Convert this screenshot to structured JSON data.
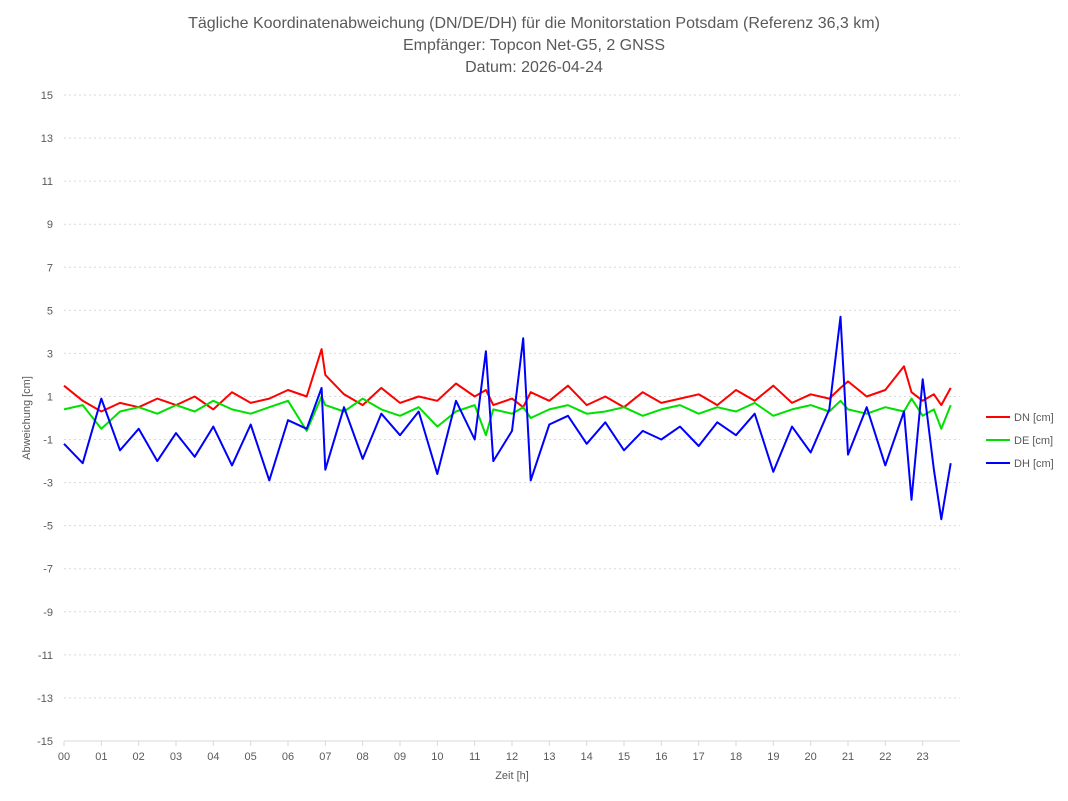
{
  "chart_data": {
    "type": "line",
    "title": [
      "Tägliche Koordinatenabweichung (DN/DE/DH) für die Monitorstation Potsdam (Referenz 36,3 km)",
      "Empfänger: Topcon Net-G5, 2 GNSS",
      "Datum: 2026-04-24"
    ],
    "xlabel": "Zeit [h]",
    "ylabel": "Abweichung [cm]",
    "xlim": [
      0,
      24
    ],
    "ylim": [
      -15,
      15
    ],
    "x_ticks": [
      "00",
      "01",
      "02",
      "03",
      "04",
      "05",
      "06",
      "07",
      "08",
      "09",
      "10",
      "11",
      "12",
      "13",
      "14",
      "15",
      "16",
      "17",
      "18",
      "19",
      "20",
      "21",
      "22",
      "23"
    ],
    "y_ticks": [
      "15",
      "13",
      "11",
      "9",
      "7",
      "5",
      "3",
      "1",
      "-1",
      "-3",
      "-5",
      "-7",
      "-9",
      "-11",
      "-13",
      "-15"
    ],
    "grid": "horizontal dotted",
    "legend": "right",
    "x": [
      0,
      0.5,
      1,
      1.5,
      2,
      2.5,
      3,
      3.5,
      4,
      4.5,
      5,
      5.5,
      6,
      6.5,
      6.9,
      7,
      7.5,
      8,
      8.5,
      9,
      9.5,
      10,
      10.5,
      11,
      11.3,
      11.5,
      12,
      12.3,
      12.5,
      13,
      13.5,
      14,
      14.5,
      15,
      15.5,
      16,
      16.5,
      17,
      17.5,
      18,
      18.5,
      19,
      19.5,
      20,
      20.5,
      20.8,
      21,
      21.5,
      22,
      22.5,
      22.7,
      23,
      23.3,
      23.5,
      23.75
    ],
    "series": [
      {
        "name": "DN [cm]",
        "color": "#ff0000",
        "values": [
          1.5,
          0.8,
          0.3,
          0.7,
          0.5,
          0.9,
          0.6,
          1.0,
          0.4,
          1.2,
          0.7,
          0.9,
          1.3,
          1.0,
          3.2,
          2.0,
          1.1,
          0.6,
          1.4,
          0.7,
          1.0,
          0.8,
          1.6,
          1.0,
          1.3,
          0.6,
          0.9,
          0.5,
          1.2,
          0.8,
          1.5,
          0.6,
          1.0,
          0.5,
          1.2,
          0.7,
          0.9,
          1.1,
          0.6,
          1.3,
          0.8,
          1.5,
          0.7,
          1.1,
          0.9,
          1.4,
          1.7,
          1.0,
          1.3,
          2.4,
          1.2,
          0.8,
          1.1,
          0.6,
          1.4
        ]
      },
      {
        "name": "DE [cm]",
        "color": "#00e000",
        "values": [
          0.4,
          0.6,
          -0.5,
          0.3,
          0.5,
          0.2,
          0.6,
          0.3,
          0.8,
          0.4,
          0.2,
          0.5,
          0.8,
          -0.6,
          1.0,
          0.6,
          0.3,
          0.9,
          0.4,
          0.1,
          0.5,
          -0.4,
          0.3,
          0.6,
          -0.8,
          0.4,
          0.2,
          0.5,
          0.0,
          0.4,
          0.6,
          0.2,
          0.3,
          0.5,
          0.1,
          0.4,
          0.6,
          0.2,
          0.5,
          0.3,
          0.7,
          0.1,
          0.4,
          0.6,
          0.3,
          0.8,
          0.4,
          0.2,
          0.5,
          0.3,
          0.9,
          0.1,
          0.4,
          -0.5,
          0.6
        ]
      },
      {
        "name": "DH [cm]",
        "color": "#0000ff",
        "values": [
          -1.2,
          -2.1,
          0.9,
          -1.5,
          -0.5,
          -2.0,
          -0.7,
          -1.8,
          -0.4,
          -2.2,
          -0.3,
          -2.9,
          -0.1,
          -0.5,
          1.4,
          -2.4,
          0.5,
          -1.9,
          0.2,
          -0.8,
          0.3,
          -2.6,
          0.8,
          -1.0,
          3.1,
          -2.0,
          -0.6,
          3.7,
          -2.9,
          -0.3,
          0.1,
          -1.2,
          -0.2,
          -1.5,
          -0.6,
          -1.0,
          -0.4,
          -1.3,
          -0.2,
          -0.8,
          0.2,
          -2.5,
          -0.4,
          -1.6,
          0.4,
          4.7,
          -1.7,
          0.5,
          -2.2,
          0.3,
          -3.8,
          1.8,
          -2.4,
          -4.7,
          -2.1
        ]
      }
    ]
  }
}
